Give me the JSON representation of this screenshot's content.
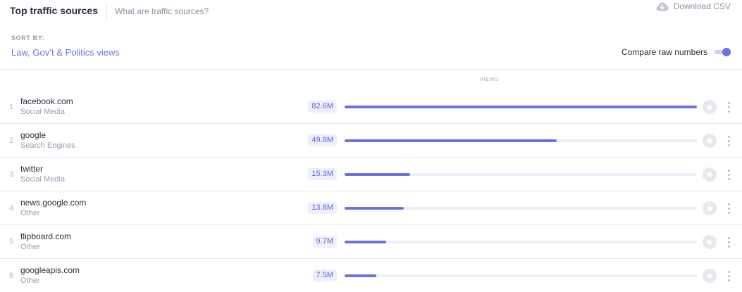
{
  "header": {
    "title": "Top traffic sources",
    "help_link": "What are traffic sources?",
    "download_label": "Download CSV",
    "download_icon": "cloud-download-icon"
  },
  "sort": {
    "caption": "SORT BY:",
    "value": "Law, Gov’t & Politics views"
  },
  "compare": {
    "label": "Compare raw numbers",
    "enabled": true
  },
  "table": {
    "views_header": "VIEWS",
    "max_value_m": 82.6,
    "rows": [
      {
        "rank": "1",
        "name": "facebook.com",
        "category": "Social Media",
        "value_label": "82.6M",
        "value_m": 82.6
      },
      {
        "rank": "2",
        "name": "google",
        "category": "Search Engines",
        "value_label": "49.8M",
        "value_m": 49.8
      },
      {
        "rank": "3",
        "name": "twitter",
        "category": "Social Media",
        "value_label": "15.3M",
        "value_m": 15.3
      },
      {
        "rank": "4",
        "name": "news.google.com",
        "category": "Other",
        "value_label": "13.8M",
        "value_m": 13.8
      },
      {
        "rank": "5",
        "name": "flipboard.com",
        "category": "Other",
        "value_label": "9.7M",
        "value_m": 9.7
      },
      {
        "rank": "6",
        "name": "googleapis.com",
        "category": "Other",
        "value_label": "7.5M",
        "value_m": 7.5
      }
    ]
  },
  "colors": {
    "accent": "#6a72e0",
    "bar_track": "#eeeff9",
    "muted_text": "#8a8fa3"
  }
}
